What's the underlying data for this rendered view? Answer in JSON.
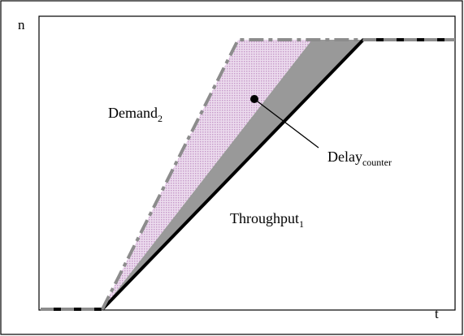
{
  "figure": {
    "y_axis_label": "n",
    "x_axis_label": "t",
    "demand": {
      "base": "Demand",
      "subscript": "2"
    },
    "throughput": {
      "base": "Throughput",
      "subscript": "1"
    },
    "delay": {
      "base": "Delay",
      "subscript": "counter"
    }
  },
  "colors": {
    "demand_line": "#8c8c8c",
    "throughput_line": "#000000",
    "delay_region": "#999999",
    "demand_region": "#e2c6e4"
  }
}
